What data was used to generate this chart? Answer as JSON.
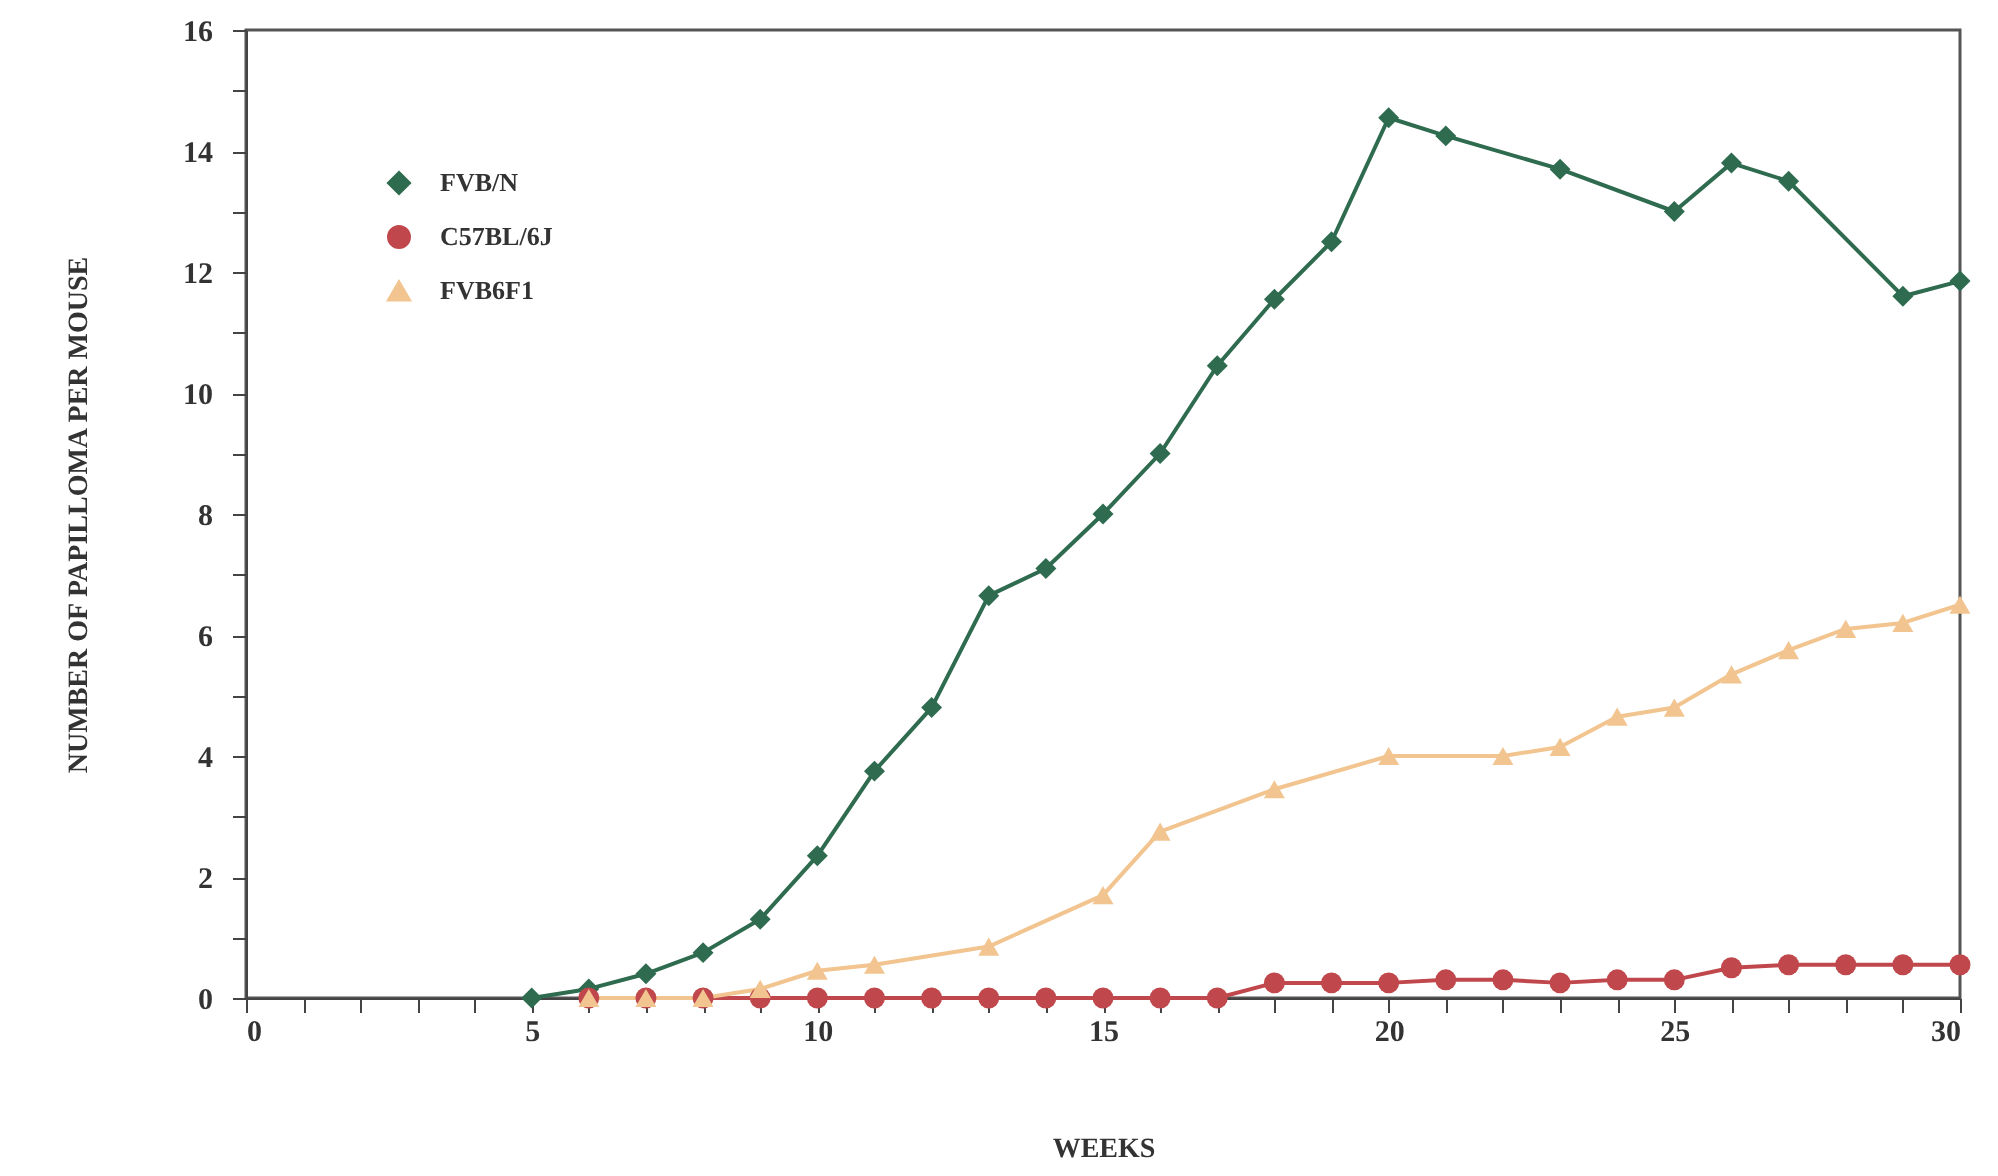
{
  "chart_data": {
    "type": "line",
    "xlabel": "WEEKS",
    "ylabel": "NUMBER OF PAPILLOMA PER MOUSE",
    "xlim": [
      0,
      30
    ],
    "xticks": [
      0,
      {
        "value": 1,
        "label": null
      },
      {
        "value": 2,
        "label": null
      },
      {
        "value": 3,
        "label": null
      },
      {
        "value": 4,
        "label": null
      },
      5,
      {
        "value": 6,
        "label": null
      },
      {
        "value": 7,
        "label": null
      },
      {
        "value": 8,
        "label": null
      },
      {
        "value": 9,
        "label": null
      },
      10,
      {
        "value": 11,
        "label": null
      },
      {
        "value": 12,
        "label": null
      },
      {
        "value": 13,
        "label": null
      },
      {
        "value": 14,
        "label": null
      },
      15,
      {
        "value": 16,
        "label": null
      },
      {
        "value": 17,
        "label": null
      },
      {
        "value": 18,
        "label": null
      },
      {
        "value": 19,
        "label": null
      },
      20,
      {
        "value": 21,
        "label": null
      },
      {
        "value": 22,
        "label": null
      },
      {
        "value": 23,
        "label": null
      },
      {
        "value": 24,
        "label": null
      },
      25,
      {
        "value": 26,
        "label": null
      },
      {
        "value": 27,
        "label": null
      },
      {
        "value": 28,
        "label": null
      },
      {
        "value": 29,
        "label": null
      },
      30
    ],
    "ylim": [
      0,
      16
    ],
    "yticks": [
      0,
      {
        "value": 1,
        "label": null
      },
      2,
      {
        "value": 3,
        "label": null
      },
      4,
      {
        "value": 5,
        "label": null
      },
      6,
      {
        "value": 7,
        "label": null
      },
      8,
      {
        "value": 9,
        "label": null
      },
      10,
      {
        "value": 11,
        "label": null
      },
      12,
      {
        "value": 13,
        "label": null
      },
      14,
      {
        "value": 15,
        "label": null
      },
      16
    ],
    "grid": false,
    "legend": "top left",
    "line_style": "solid",
    "series": [
      {
        "name": "FVB/N",
        "color": "#2e6b4f",
        "marker": "diamond",
        "x": [
          5,
          6,
          7,
          8,
          9,
          10,
          11,
          12,
          13,
          14,
          15,
          16,
          17,
          18,
          19,
          20,
          21,
          23,
          25,
          26,
          27,
          29,
          30
        ],
        "values": [
          0,
          0.15,
          0.4,
          0.75,
          1.3,
          2.35,
          3.75,
          4.8,
          6.65,
          7.1,
          8.0,
          9.0,
          10.45,
          11.55,
          12.5,
          14.55,
          14.25,
          13.7,
          13.0,
          13.8,
          13.5,
          11.6,
          11.85
        ]
      },
      {
        "name": "C57BL/6J",
        "color": "#c0474b",
        "marker": "circle",
        "x": [
          6,
          7,
          8,
          9,
          10,
          11,
          12,
          13,
          14,
          15,
          16,
          17,
          18,
          19,
          20,
          21,
          22,
          23,
          24,
          25,
          26,
          27,
          28,
          29,
          30
        ],
        "values": [
          0,
          0,
          0,
          0,
          0,
          0,
          0,
          0,
          0,
          0,
          0,
          0,
          0.25,
          0.25,
          0.25,
          0.3,
          0.3,
          0.25,
          0.3,
          0.3,
          0.5,
          0.55,
          0.55,
          0.55,
          0.55
        ]
      },
      {
        "name": "FVB6F1",
        "color": "#f2c48f",
        "marker": "triangle",
        "x": [
          6,
          7,
          8,
          9,
          10,
          11,
          13,
          15,
          16,
          18,
          20,
          22,
          23,
          24,
          25,
          26,
          27,
          28,
          29,
          30
        ],
        "values": [
          0,
          0,
          0,
          0.15,
          0.45,
          0.55,
          0.85,
          1.7,
          2.75,
          3.45,
          4.0,
          4.0,
          4.15,
          4.65,
          4.8,
          5.35,
          5.75,
          6.1,
          6.2,
          6.5
        ]
      }
    ]
  }
}
